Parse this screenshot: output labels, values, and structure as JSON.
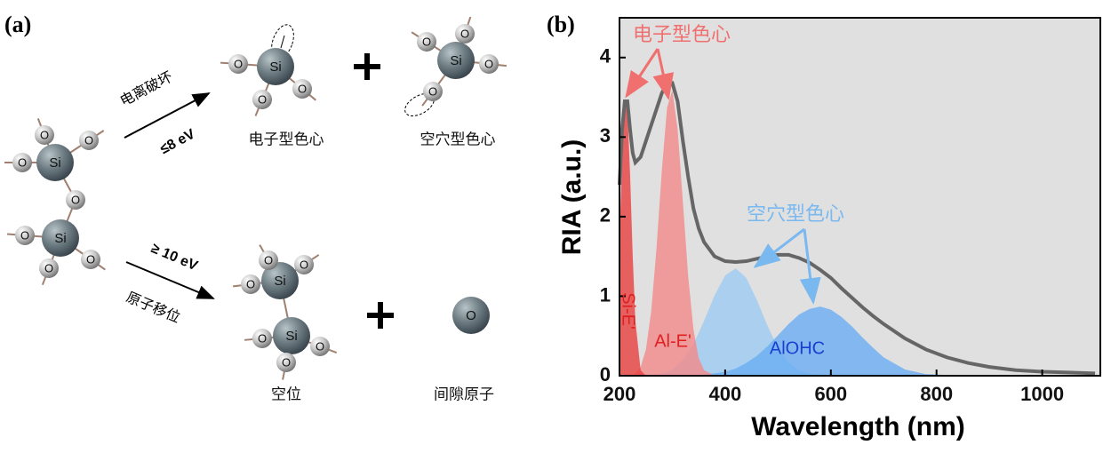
{
  "panel_a": {
    "label": "(a)",
    "reactant": {
      "atoms": [
        "Si",
        "O",
        "O",
        "O",
        "O",
        "Si",
        "O",
        "O",
        "O"
      ]
    },
    "ionization": {
      "process": "电离破坏",
      "energy": "≤8 eV"
    },
    "displacement": {
      "energy": "≥ 10 eV",
      "process": "原子移位"
    },
    "products": [
      {
        "caption": "电子型色心",
        "atoms": [
          "Si",
          "O",
          "O",
          "O"
        ]
      },
      {
        "caption": "空穴型色心",
        "atoms": [
          "Si",
          "O",
          "O",
          "O",
          "O"
        ]
      },
      {
        "caption": "空位",
        "atoms": [
          "Si",
          "O",
          "O",
          "O",
          "Si",
          "O",
          "O",
          "O"
        ]
      },
      {
        "caption": "间隙原子",
        "atoms": [
          "O"
        ]
      }
    ]
  },
  "chart_data": {
    "type": "line",
    "panel_label": "(b)",
    "xlabel": "Wavelength (nm)",
    "ylabel": "RIA (a.u.)",
    "xlim": [
      200,
      1110
    ],
    "ylim": [
      0,
      4.5
    ],
    "xticks": [
      200,
      400,
      600,
      800,
      1000
    ],
    "yticks": [
      0,
      1,
      2,
      3,
      4
    ],
    "background": "#e0e0e0",
    "x": [
      200,
      205,
      210,
      215,
      220,
      225,
      230,
      240,
      250,
      260,
      270,
      280,
      290,
      300,
      310,
      320,
      330,
      340,
      350,
      360,
      380,
      400,
      420,
      440,
      460,
      480,
      500,
      520,
      540,
      560,
      580,
      600,
      620,
      640,
      660,
      680,
      700,
      740,
      780,
      820,
      860,
      900,
      950,
      1000,
      1050,
      1100
    ],
    "series": [
      {
        "color": "#9ccaf2",
        "area": true,
        "values": [
          0,
          0,
          0,
          0,
          0,
          0,
          0,
          0,
          0.01,
          0.01,
          0.02,
          0.03,
          0.05,
          0.08,
          0.13,
          0.2,
          0.29,
          0.4,
          0.54,
          0.69,
          1.01,
          1.26,
          1.35,
          1.23,
          0.95,
          0.63,
          0.35,
          0.17,
          0.07,
          0.03,
          0.01,
          0,
          0,
          0,
          0,
          0,
          0,
          0,
          0,
          0,
          0,
          0,
          0,
          0,
          0,
          0
        ]
      },
      {
        "name": "AlOHC",
        "color": "#6aaef2",
        "area": true,
        "values": [
          0,
          0,
          0,
          0,
          0,
          0,
          0,
          0,
          0,
          0,
          0,
          0,
          0,
          0,
          0,
          0,
          0,
          0.01,
          0.01,
          0.02,
          0.03,
          0.05,
          0.09,
          0.16,
          0.25,
          0.37,
          0.51,
          0.65,
          0.77,
          0.84,
          0.87,
          0.83,
          0.74,
          0.62,
          0.48,
          0.35,
          0.23,
          0.08,
          0.02,
          0.01,
          0,
          0,
          0,
          0,
          0,
          0
        ]
      },
      {
        "name": "Al-E'",
        "color": "#f28a8a",
        "area": true,
        "values": [
          0,
          0,
          0,
          0,
          0.01,
          0.01,
          0.03,
          0.11,
          0.33,
          0.81,
          1.6,
          2.57,
          3.37,
          3.59,
          3.1,
          2.18,
          1.25,
          0.58,
          0.22,
          0.07,
          0,
          0,
          0,
          0,
          0,
          0,
          0,
          0,
          0,
          0,
          0,
          0,
          0,
          0,
          0,
          0,
          0,
          0,
          0,
          0,
          0,
          0,
          0,
          0,
          0,
          0
        ]
      },
      {
        "name": "Si-E'",
        "color": "#e84040",
        "area": true,
        "values": [
          1.7,
          2.75,
          3.43,
          3.35,
          2.54,
          1.51,
          0.69,
          0.07,
          0,
          0,
          0,
          0,
          0,
          0,
          0,
          0,
          0,
          0,
          0,
          0,
          0,
          0,
          0,
          0,
          0,
          0,
          0,
          0,
          0,
          0,
          0,
          0,
          0,
          0,
          0,
          0,
          0,
          0,
          0,
          0,
          0,
          0,
          0,
          0,
          0,
          0
        ]
      },
      {
        "color": "#666666",
        "area": false,
        "values": [
          2.4,
          3.1,
          3.45,
          3.45,
          3.1,
          2.8,
          2.68,
          2.75,
          2.95,
          3.15,
          3.35,
          3.55,
          3.68,
          3.68,
          3.45,
          2.95,
          2.5,
          2.1,
          1.85,
          1.68,
          1.5,
          1.44,
          1.43,
          1.44,
          1.47,
          1.5,
          1.52,
          1.52,
          1.48,
          1.42,
          1.33,
          1.23,
          1.1,
          0.98,
          0.86,
          0.75,
          0.65,
          0.47,
          0.33,
          0.23,
          0.16,
          0.11,
          0.07,
          0.05,
          0.04,
          0.03
        ]
      }
    ],
    "annotations": [
      "电子型色心",
      "空穴型色心"
    ]
  }
}
